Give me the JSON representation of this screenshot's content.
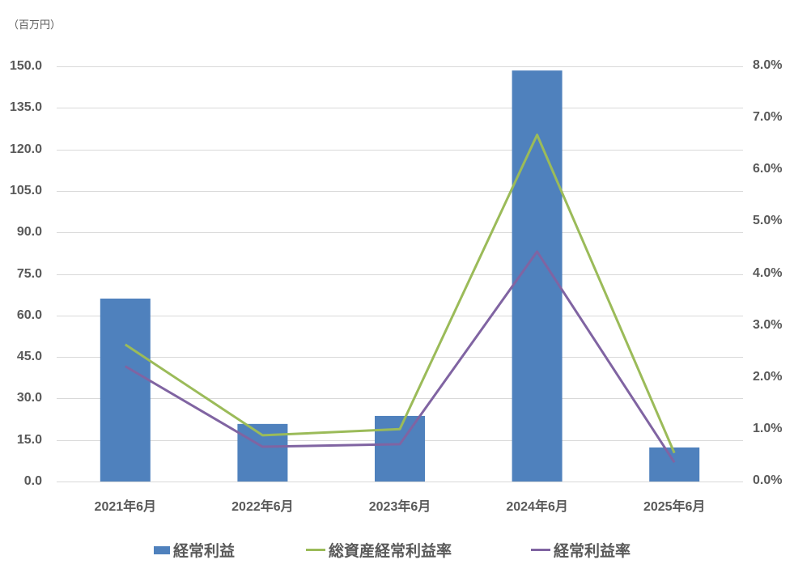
{
  "chart_data": {
    "type": "bar+line",
    "title": "",
    "unit_label": "（百万円）",
    "categories": [
      "2021年6月",
      "2022年6月",
      "2023年6月",
      "2024年6月",
      "2025年6月"
    ],
    "series": [
      {
        "name": "経常利益",
        "type": "bar",
        "axis": "left",
        "color": "#4F81BD",
        "values": [
          66.1,
          20.8,
          23.7,
          148.5,
          12.3
        ]
      },
      {
        "name": "総資産経常利益率",
        "type": "line",
        "axis": "right",
        "color": "#9BBB59",
        "values": [
          2.64,
          0.89,
          1.01,
          6.68,
          0.55
        ]
      },
      {
        "name": "経常利益率",
        "type": "line",
        "axis": "right",
        "color": "#8064A2",
        "values": [
          2.22,
          0.67,
          0.72,
          4.43,
          0.37
        ]
      }
    ],
    "y_left": {
      "label": "百万円",
      "min": 0,
      "max": 150,
      "step": 15,
      "ticks": [
        "0.0",
        "15.0",
        "30.0",
        "45.0",
        "60.0",
        "75.0",
        "90.0",
        "105.0",
        "120.0",
        "135.0",
        "150.0"
      ]
    },
    "y_right": {
      "label": "",
      "min": 0,
      "max": 8,
      "step": 1,
      "ticks": [
        "0.0%",
        "1.0%",
        "2.0%",
        "3.0%",
        "4.0%",
        "5.0%",
        "6.0%",
        "7.0%",
        "8.0%"
      ]
    },
    "grid": true,
    "legend_position": "bottom"
  },
  "legend": [
    {
      "label": "経常利益",
      "kind": "bar",
      "color": "#4F81BD"
    },
    {
      "label": "総資産経常利益率",
      "kind": "line",
      "color": "#9BBB59"
    },
    {
      "label": "経常利益率",
      "kind": "line",
      "color": "#8064A2"
    }
  ]
}
